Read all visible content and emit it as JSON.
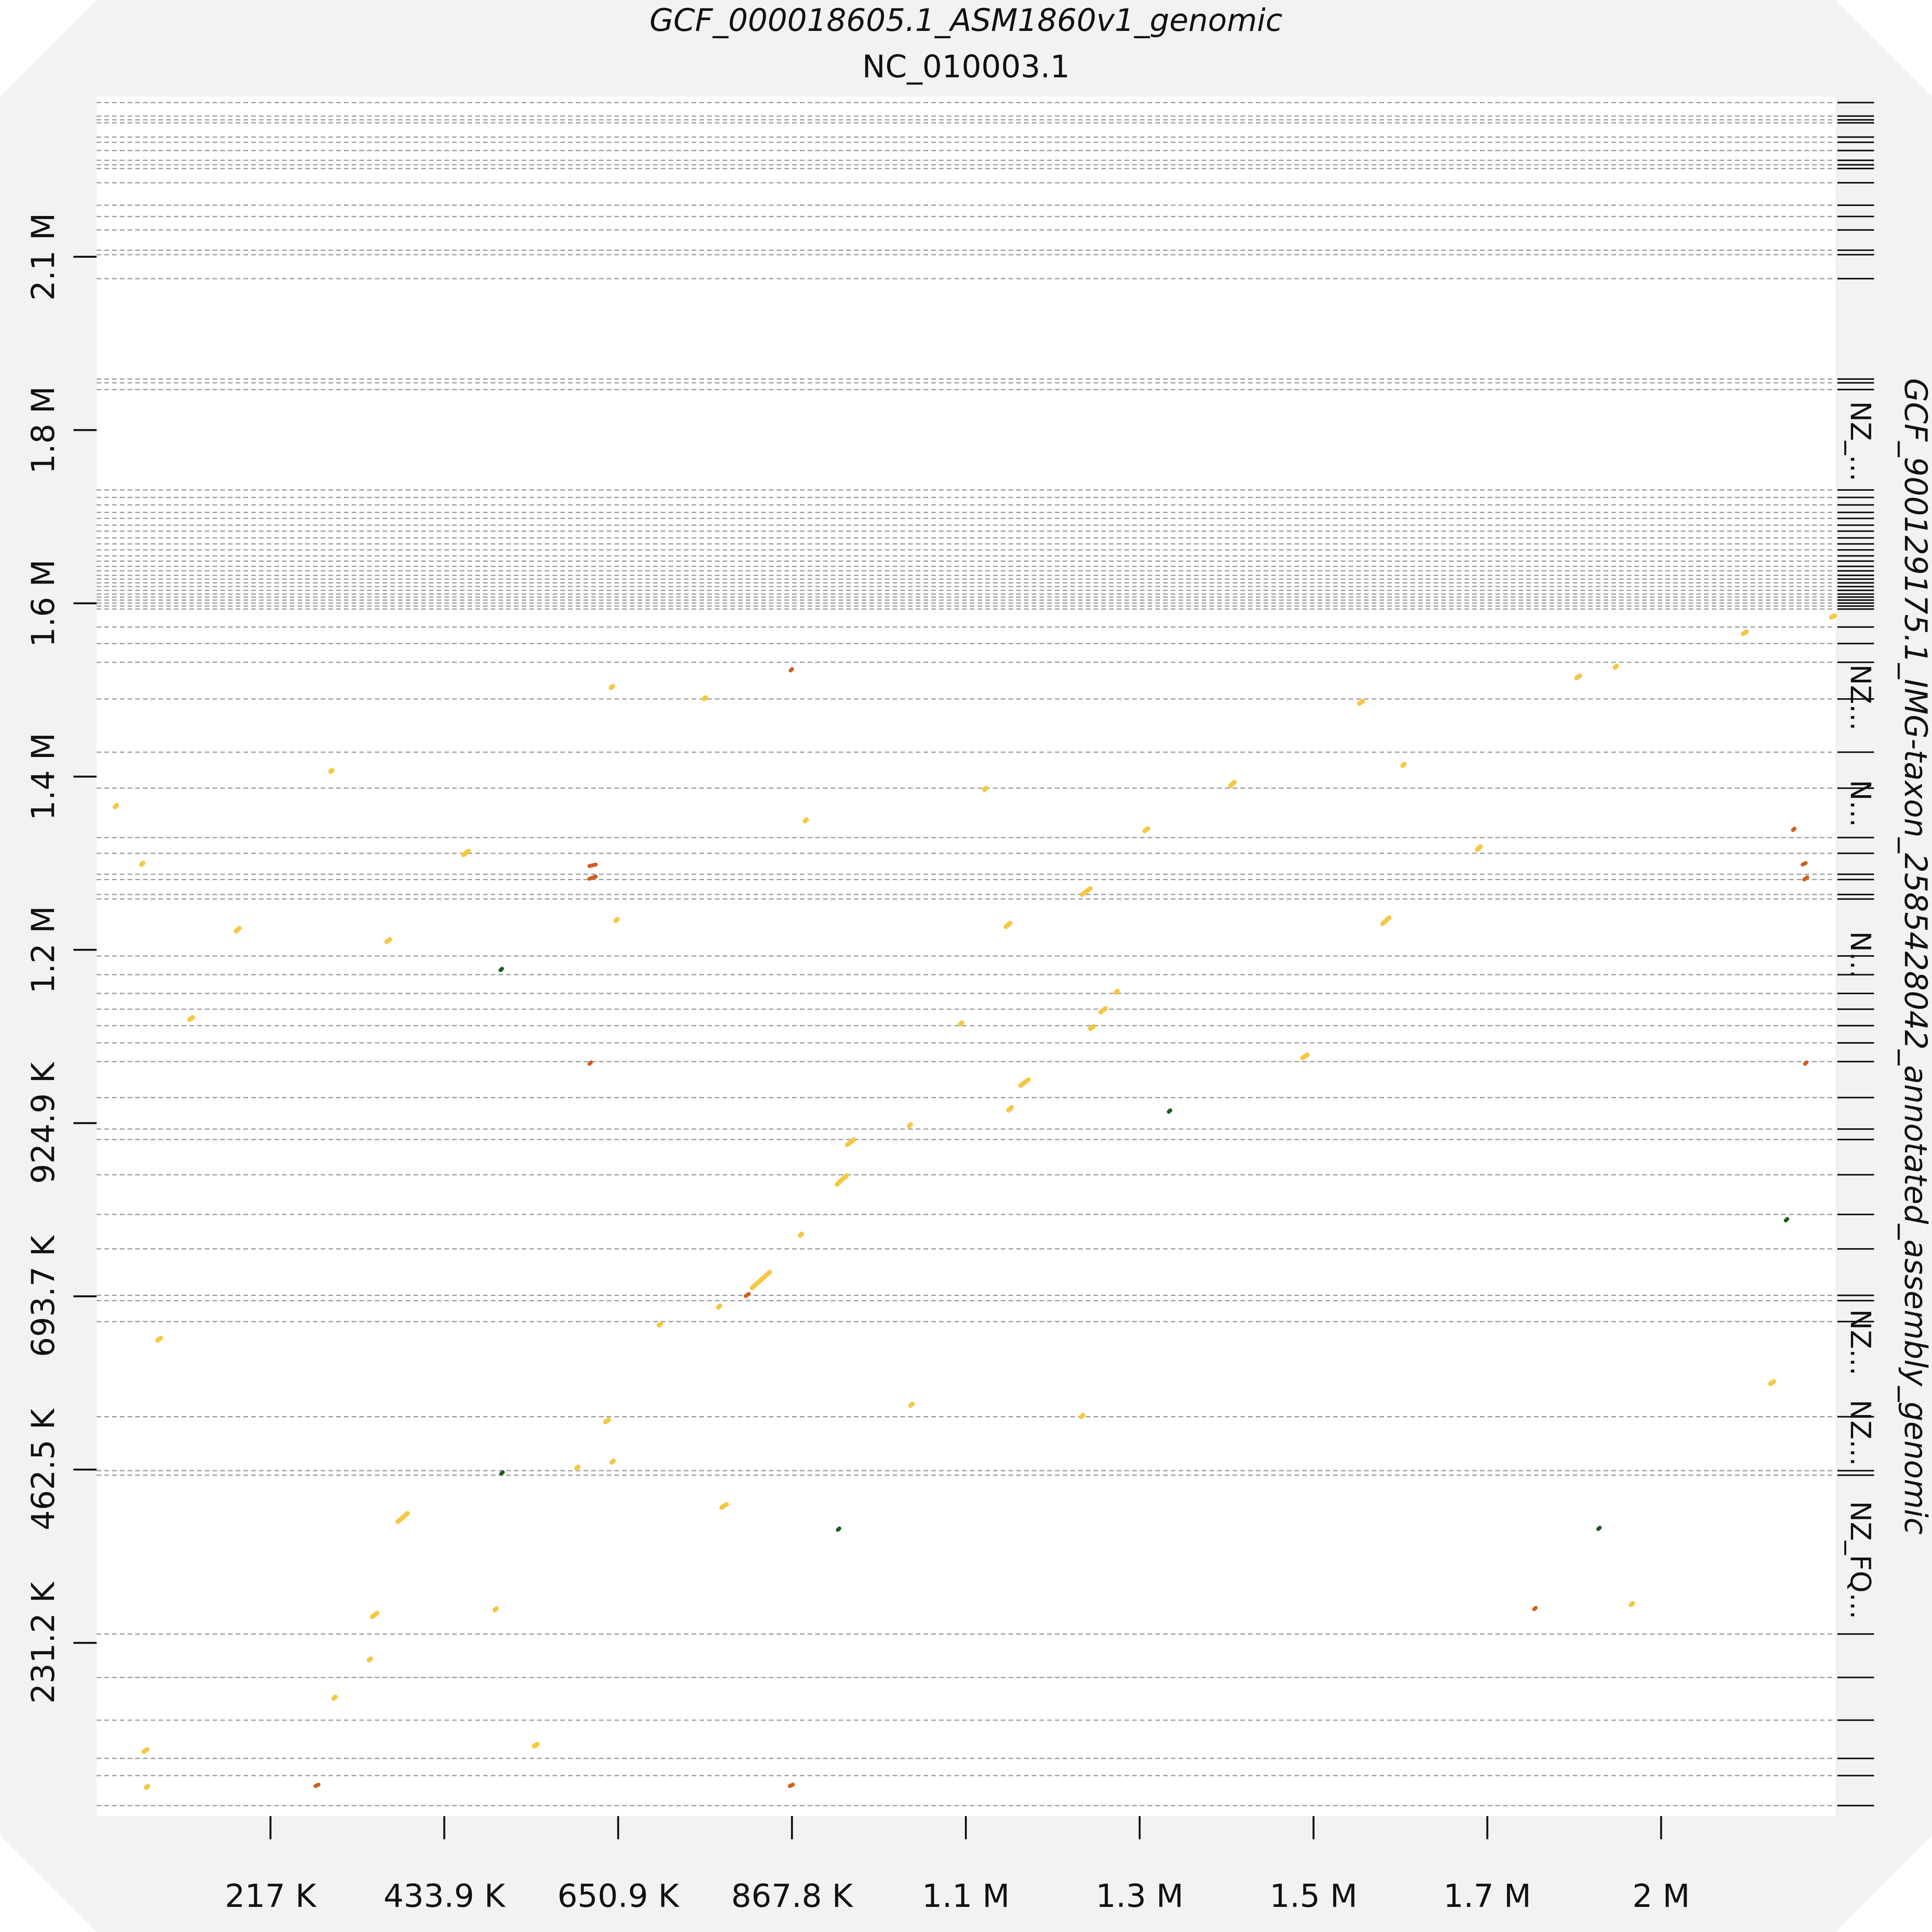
{
  "chart_data": {
    "type": "scatter",
    "title": "GCF_000018605.1_ASM1860v1_genomic",
    "subtitle": "NC_010003.1",
    "ylabel": "GCF_900129175.1_IMG-taxon_2585428042_annotated_assembly_genomic",
    "x_ticks": [
      {
        "value": 217000,
        "label": "217 K"
      },
      {
        "value": 433900,
        "label": "433.9 K"
      },
      {
        "value": 650900,
        "label": "650.9 K"
      },
      {
        "value": 867800,
        "label": "867.8 K"
      },
      {
        "value": 1084800,
        "label": "1.1 M"
      },
      {
        "value": 1301700,
        "label": "1.3 M"
      },
      {
        "value": 1518700,
        "label": "1.5 M"
      },
      {
        "value": 1735600,
        "label": "1.7 M"
      },
      {
        "value": 1952500,
        "label": "2 M"
      }
    ],
    "y_ticks": [
      {
        "value": 231200,
        "label": "231.2 K"
      },
      {
        "value": 462500,
        "label": "462.5 K"
      },
      {
        "value": 693700,
        "label": "693.7 K"
      },
      {
        "value": 924900,
        "label": "924.9 K"
      },
      {
        "value": 1156200,
        "label": "1.2 M"
      },
      {
        "value": 1387400,
        "label": "1.4 M"
      },
      {
        "value": 1618700,
        "label": "1.6 M"
      },
      {
        "value": 1849900,
        "label": "1.8 M"
      },
      {
        "value": 2081200,
        "label": "2.1 M"
      }
    ],
    "xlim": [
      0,
      2170000
    ],
    "ylim": [
      0,
      2295000
    ],
    "contig_labels": [
      {
        "label": "NZ_FQ...",
        "y_from": 231200,
        "y_to": 452000
      },
      {
        "label": "NZ...",
        "y_from": 452000,
        "y_to": 571000
      },
      {
        "label": "NZ...",
        "y_from": 571000,
        "y_to": 693700
      },
      {
        "label": "N...",
        "y_from": 1075000,
        "y_to": 1224000
      },
      {
        "label": "N...",
        "y_from": 1285000,
        "y_to": 1418000
      },
      {
        "label": "NZ...",
        "y_from": 1420000,
        "y_to": 1566000
      },
      {
        "label": "NZ_...",
        "y_from": 1755000,
        "y_to": 1915000
      }
    ],
    "contig_boundaries": [
      14000,
      54000,
      77000,
      128000,
      185000,
      243000,
      455000,
      461000,
      533000,
      660000,
      688000,
      695000,
      757000,
      803000,
      856000,
      903000,
      917000,
      959000,
      1007000,
      1032000,
      1055000,
      1077000,
      1098000,
      1123000,
      1148000,
      1224000,
      1230000,
      1250000,
      1257000,
      1285000,
      1306000,
      1372000,
      1420000,
      1491000,
      1540000,
      1565000,
      1587000,
      1611000,
      1615000,
      1619000,
      1623000,
      1627000,
      1631000,
      1636000,
      1641000,
      1646000,
      1651000,
      1656000,
      1662000,
      1668000,
      1675000,
      1682000,
      1690000,
      1698000,
      1706000,
      1715000,
      1723000,
      1732000,
      1740000,
      1750000,
      1760000,
      1770000,
      1904000,
      1913000,
      1918000,
      2052000,
      2084000,
      2090000,
      2117000,
      2135000,
      2150000,
      2180000,
      2199000,
      2204000,
      2210000,
      2223000,
      2234000,
      2241000,
      2260000,
      2264000,
      2269000,
      2287000
    ],
    "colors": {
      "forward": "#f5c842",
      "reverse": "#d25f1e",
      "repeat": "#1a5e1a",
      "frame": "#f2f2f2",
      "grid": "#999999"
    },
    "segments": [
      {
        "x": [
          23000,
          25000
        ],
        "y": [
          1347000,
          1349000
        ],
        "kind": "forward"
      },
      {
        "x": [
          56000,
          58000
        ],
        "y": [
          1270000,
          1272000
        ],
        "kind": "forward"
      },
      {
        "x": [
          174000,
          178000
        ],
        "y": [
          1181000,
          1185000
        ],
        "kind": "forward"
      },
      {
        "x": [
          292000,
          294000
        ],
        "y": [
          1394000,
          1396000
        ],
        "kind": "forward"
      },
      {
        "x": [
          362000,
          366000
        ],
        "y": [
          1167000,
          1170000
        ],
        "kind": "forward"
      },
      {
        "x": [
          458000,
          464000
        ],
        "y": [
          1283000,
          1288000
        ],
        "kind": "forward"
      },
      {
        "x": [
          615000,
          623000
        ],
        "y": [
          1268000,
          1270000
        ],
        "kind": "reverse"
      },
      {
        "x": [
          615000,
          623000
        ],
        "y": [
          1251000,
          1254000
        ],
        "kind": "reverse"
      },
      {
        "x": [
          615000,
          617000
        ],
        "y": [
          1004000,
          1006000
        ],
        "kind": "reverse"
      },
      {
        "x": [
          642000,
          644000
        ],
        "y": [
          1506000,
          1508000
        ],
        "kind": "forward"
      },
      {
        "x": [
          758000,
          760000
        ],
        "y": [
          1491000,
          1493000
        ],
        "kind": "forward"
      },
      {
        "x": [
          866000,
          868000
        ],
        "y": [
          1529000,
          1531000
        ],
        "kind": "reverse"
      },
      {
        "x": [
          884000,
          886000
        ],
        "y": [
          1328000,
          1330000
        ],
        "kind": "forward"
      },
      {
        "x": [
          1108000,
          1110000
        ],
        "y": [
          1370000,
          1372000
        ],
        "kind": "forward"
      },
      {
        "x": [
          1135000,
          1140000
        ],
        "y": [
          1187000,
          1192000
        ],
        "kind": "forward"
      },
      {
        "x": [
          1230000,
          1240000
        ],
        "y": [
          1230000,
          1238000
        ],
        "kind": "forward"
      },
      {
        "x": [
          1308000,
          1312000
        ],
        "y": [
          1315000,
          1318000
        ],
        "kind": "forward"
      },
      {
        "x": [
          1415000,
          1420000
        ],
        "y": [
          1375000,
          1380000
        ],
        "kind": "forward"
      },
      {
        "x": [
          1576000,
          1580000
        ],
        "y": [
          1485000,
          1488000
        ],
        "kind": "forward"
      },
      {
        "x": [
          1630000,
          1632000
        ],
        "y": [
          1402000,
          1404000
        ],
        "kind": "forward"
      },
      {
        "x": [
          1723000,
          1727000
        ],
        "y": [
          1290000,
          1294000
        ],
        "kind": "forward"
      },
      {
        "x": [
          1847000,
          1851000
        ],
        "y": [
          1519000,
          1522000
        ],
        "kind": "forward"
      },
      {
        "x": [
          1895000,
          1897000
        ],
        "y": [
          1533000,
          1535000
        ],
        "kind": "forward"
      },
      {
        "x": [
          2055000,
          2059000
        ],
        "y": [
          1578000,
          1581000
        ],
        "kind": "forward"
      },
      {
        "x": [
          2165000,
          2169000
        ],
        "y": [
          1600000,
          1602000
        ],
        "kind": "forward"
      },
      {
        "x": [
          2117000,
          2119000
        ],
        "y": [
          1316000,
          1318000
        ],
        "kind": "reverse"
      },
      {
        "x": [
          2129000,
          2133000
        ],
        "y": [
          1270000,
          1272000
        ],
        "kind": "reverse"
      },
      {
        "x": [
          2131000,
          2135000
        ],
        "y": [
          1250000,
          1253000
        ],
        "kind": "reverse"
      },
      {
        "x": [
          2132000,
          2134000
        ],
        "y": [
          1004000,
          1006000
        ],
        "kind": "reverse"
      },
      {
        "x": [
          1605000,
          1613000
        ],
        "y": [
          1191000,
          1199000
        ],
        "kind": "forward"
      },
      {
        "x": [
          648000,
          650000
        ],
        "y": [
          1195000,
          1197000
        ],
        "kind": "forward"
      },
      {
        "x": [
          116000,
          120000
        ],
        "y": [
          1063000,
          1066000
        ],
        "kind": "forward"
      },
      {
        "x": [
          504000,
          506000
        ],
        "y": [
          1129000,
          1131000
        ],
        "kind": "repeat"
      },
      {
        "x": [
          1272000,
          1274000
        ],
        "y": [
          1099000,
          1101000
        ],
        "kind": "forward"
      },
      {
        "x": [
          1253000,
          1259000
        ],
        "y": [
          1073000,
          1078000
        ],
        "kind": "forward"
      },
      {
        "x": [
          1240000,
          1244000
        ],
        "y": [
          1051000,
          1054000
        ],
        "kind": "forward"
      },
      {
        "x": [
          1078000,
          1080000
        ],
        "y": [
          1057000,
          1059000
        ],
        "kind": "forward"
      },
      {
        "x": [
          1505000,
          1511000
        ],
        "y": [
          1012000,
          1016000
        ],
        "kind": "forward"
      },
      {
        "x": [
          1153000,
          1163000
        ],
        "y": [
          975000,
          983000
        ],
        "kind": "forward"
      },
      {
        "x": [
          1138000,
          1142000
        ],
        "y": [
          942000,
          946000
        ],
        "kind": "forward"
      },
      {
        "x": [
          1338000,
          1340000
        ],
        "y": [
          940000,
          942000
        ],
        "kind": "repeat"
      },
      {
        "x": [
          1014000,
          1016000
        ],
        "y": [
          921000,
          923000
        ],
        "kind": "forward"
      },
      {
        "x": [
          937000,
          945000
        ],
        "y": [
          896000,
          903000
        ],
        "kind": "forward"
      },
      {
        "x": [
          924000,
          936000
        ],
        "y": [
          843000,
          855000
        ],
        "kind": "forward"
      },
      {
        "x": [
          878000,
          880000
        ],
        "y": [
          775000,
          777000
        ],
        "kind": "forward"
      },
      {
        "x": [
          2108000,
          2110000
        ],
        "y": [
          795000,
          797000
        ],
        "kind": "repeat"
      },
      {
        "x": [
          818000,
          840000
        ],
        "y": [
          705000,
          726000
        ],
        "kind": "forward"
      },
      {
        "x": [
          810000,
          814000
        ],
        "y": [
          694000,
          697000
        ],
        "kind": "reverse"
      },
      {
        "x": [
          776000,
          778000
        ],
        "y": [
          679000,
          681000
        ],
        "kind": "forward"
      },
      {
        "x": [
          702000,
          704000
        ],
        "y": [
          655000,
          657000
        ],
        "kind": "forward"
      },
      {
        "x": [
          76000,
          80000
        ],
        "y": [
          635000,
          638000
        ],
        "kind": "forward"
      },
      {
        "x": [
          2089000,
          2093000
        ],
        "y": [
          577000,
          580000
        ],
        "kind": "forward"
      },
      {
        "x": [
          1016000,
          1018000
        ],
        "y": [
          548000,
          550000
        ],
        "kind": "forward"
      },
      {
        "x": [
          1229000,
          1231000
        ],
        "y": [
          533000,
          535000
        ],
        "kind": "forward"
      },
      {
        "x": [
          635000,
          639000
        ],
        "y": [
          526000,
          529000
        ],
        "kind": "forward"
      },
      {
        "x": [
          643000,
          645000
        ],
        "y": [
          472000,
          474000
        ],
        "kind": "forward"
      },
      {
        "x": [
          599000,
          601000
        ],
        "y": [
          464000,
          466000
        ],
        "kind": "forward"
      },
      {
        "x": [
          505000,
          507000
        ],
        "y": [
          457000,
          459000
        ],
        "kind": "repeat"
      },
      {
        "x": [
          780000,
          786000
        ],
        "y": [
          412000,
          416000
        ],
        "kind": "forward"
      },
      {
        "x": [
          376000,
          388000
        ],
        "y": [
          393000,
          404000
        ],
        "kind": "forward"
      },
      {
        "x": [
          925000,
          927000
        ],
        "y": [
          382000,
          384000
        ],
        "kind": "repeat"
      },
      {
        "x": [
          1874000,
          1876000
        ],
        "y": [
          383000,
          385000
        ],
        "kind": "repeat"
      },
      {
        "x": [
          1794000,
          1796000
        ],
        "y": [
          276000,
          278000
        ],
        "kind": "reverse"
      },
      {
        "x": [
          1915000,
          1917000
        ],
        "y": [
          282000,
          284000
        ],
        "kind": "forward"
      },
      {
        "x": [
          497000,
          499000
        ],
        "y": [
          275000,
          277000
        ],
        "kind": "forward"
      },
      {
        "x": [
          344000,
          350000
        ],
        "y": [
          266000,
          271000
        ],
        "kind": "forward"
      },
      {
        "x": [
          340000,
          342000
        ],
        "y": [
          208000,
          210000
        ],
        "kind": "forward"
      },
      {
        "x": [
          296000,
          298000
        ],
        "y": [
          157000,
          159000
        ],
        "kind": "forward"
      },
      {
        "x": [
          546000,
          550000
        ],
        "y": [
          93000,
          96000
        ],
        "kind": "forward"
      },
      {
        "x": [
          59000,
          63000
        ],
        "y": [
          86000,
          89000
        ],
        "kind": "forward"
      },
      {
        "x": [
          62000,
          64000
        ],
        "y": [
          38000,
          40000
        ],
        "kind": "forward"
      },
      {
        "x": [
          273000,
          277000
        ],
        "y": [
          40000,
          42000
        ],
        "kind": "reverse"
      },
      {
        "x": [
          865000,
          869000
        ],
        "y": [
          40000,
          42000
        ],
        "kind": "reverse"
      }
    ]
  }
}
